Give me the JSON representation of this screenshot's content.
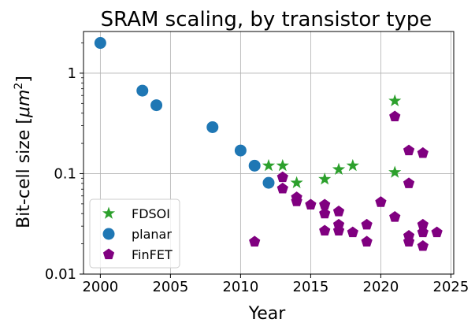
{
  "chart_data": {
    "type": "scatter",
    "title": "SRAM scaling, by transistor type",
    "xlabel": "Year",
    "ylabel_main": "Bit-cell size [",
    "ylabel_unit": "μm",
    "ylabel_exp": "2",
    "ylabel_close": "]",
    "xlim": [
      1998.8,
      2025.2
    ],
    "ylim": [
      0.01,
      2.6
    ],
    "yscale": "log",
    "grid": true,
    "legend_position": "lower-left",
    "x_ticks": [
      2000,
      2005,
      2010,
      2015,
      2020,
      2025
    ],
    "x_tick_labels": [
      "2000",
      "2005",
      "2010",
      "2015",
      "2020",
      "2025"
    ],
    "y_ticks": [
      1,
      0.1,
      0.01
    ],
    "y_tick_labels": [
      "1",
      "0.1",
      "0.01"
    ],
    "series": [
      {
        "name": "FDSOI",
        "marker": "star",
        "color": "#2ca02c",
        "points": [
          [
            2012,
            0.12
          ],
          [
            2013,
            0.12
          ],
          [
            2014,
            0.081
          ],
          [
            2016,
            0.088
          ],
          [
            2017,
            0.11
          ],
          [
            2018,
            0.12
          ],
          [
            2021,
            0.53
          ],
          [
            2021,
            0.103
          ]
        ]
      },
      {
        "name": "planar",
        "marker": "circle",
        "color": "#1f77b4",
        "points": [
          [
            2000,
            2.0
          ],
          [
            2003,
            0.67
          ],
          [
            2004,
            0.48
          ],
          [
            2008,
            0.29
          ],
          [
            2010,
            0.17
          ],
          [
            2011,
            0.12
          ],
          [
            2012,
            0.081
          ]
        ]
      },
      {
        "name": "FinFET",
        "marker": "pentagon",
        "color": "#800080",
        "points": [
          [
            2011,
            0.021
          ],
          [
            2013,
            0.092
          ],
          [
            2013,
            0.071
          ],
          [
            2014,
            0.058
          ],
          [
            2014,
            0.053
          ],
          [
            2015,
            0.049
          ],
          [
            2016,
            0.049
          ],
          [
            2016,
            0.04
          ],
          [
            2016,
            0.027
          ],
          [
            2017,
            0.042
          ],
          [
            2017,
            0.031
          ],
          [
            2017,
            0.027
          ],
          [
            2018,
            0.026
          ],
          [
            2019,
            0.031
          ],
          [
            2019,
            0.021
          ],
          [
            2020,
            0.052
          ],
          [
            2021,
            0.037
          ],
          [
            2021,
            0.37
          ],
          [
            2022,
            0.17
          ],
          [
            2022,
            0.08
          ],
          [
            2022,
            0.024
          ],
          [
            2022,
            0.021
          ],
          [
            2023,
            0.16
          ],
          [
            2023,
            0.031
          ],
          [
            2023,
            0.026
          ],
          [
            2023,
            0.019
          ],
          [
            2024,
            0.026
          ]
        ]
      }
    ]
  }
}
